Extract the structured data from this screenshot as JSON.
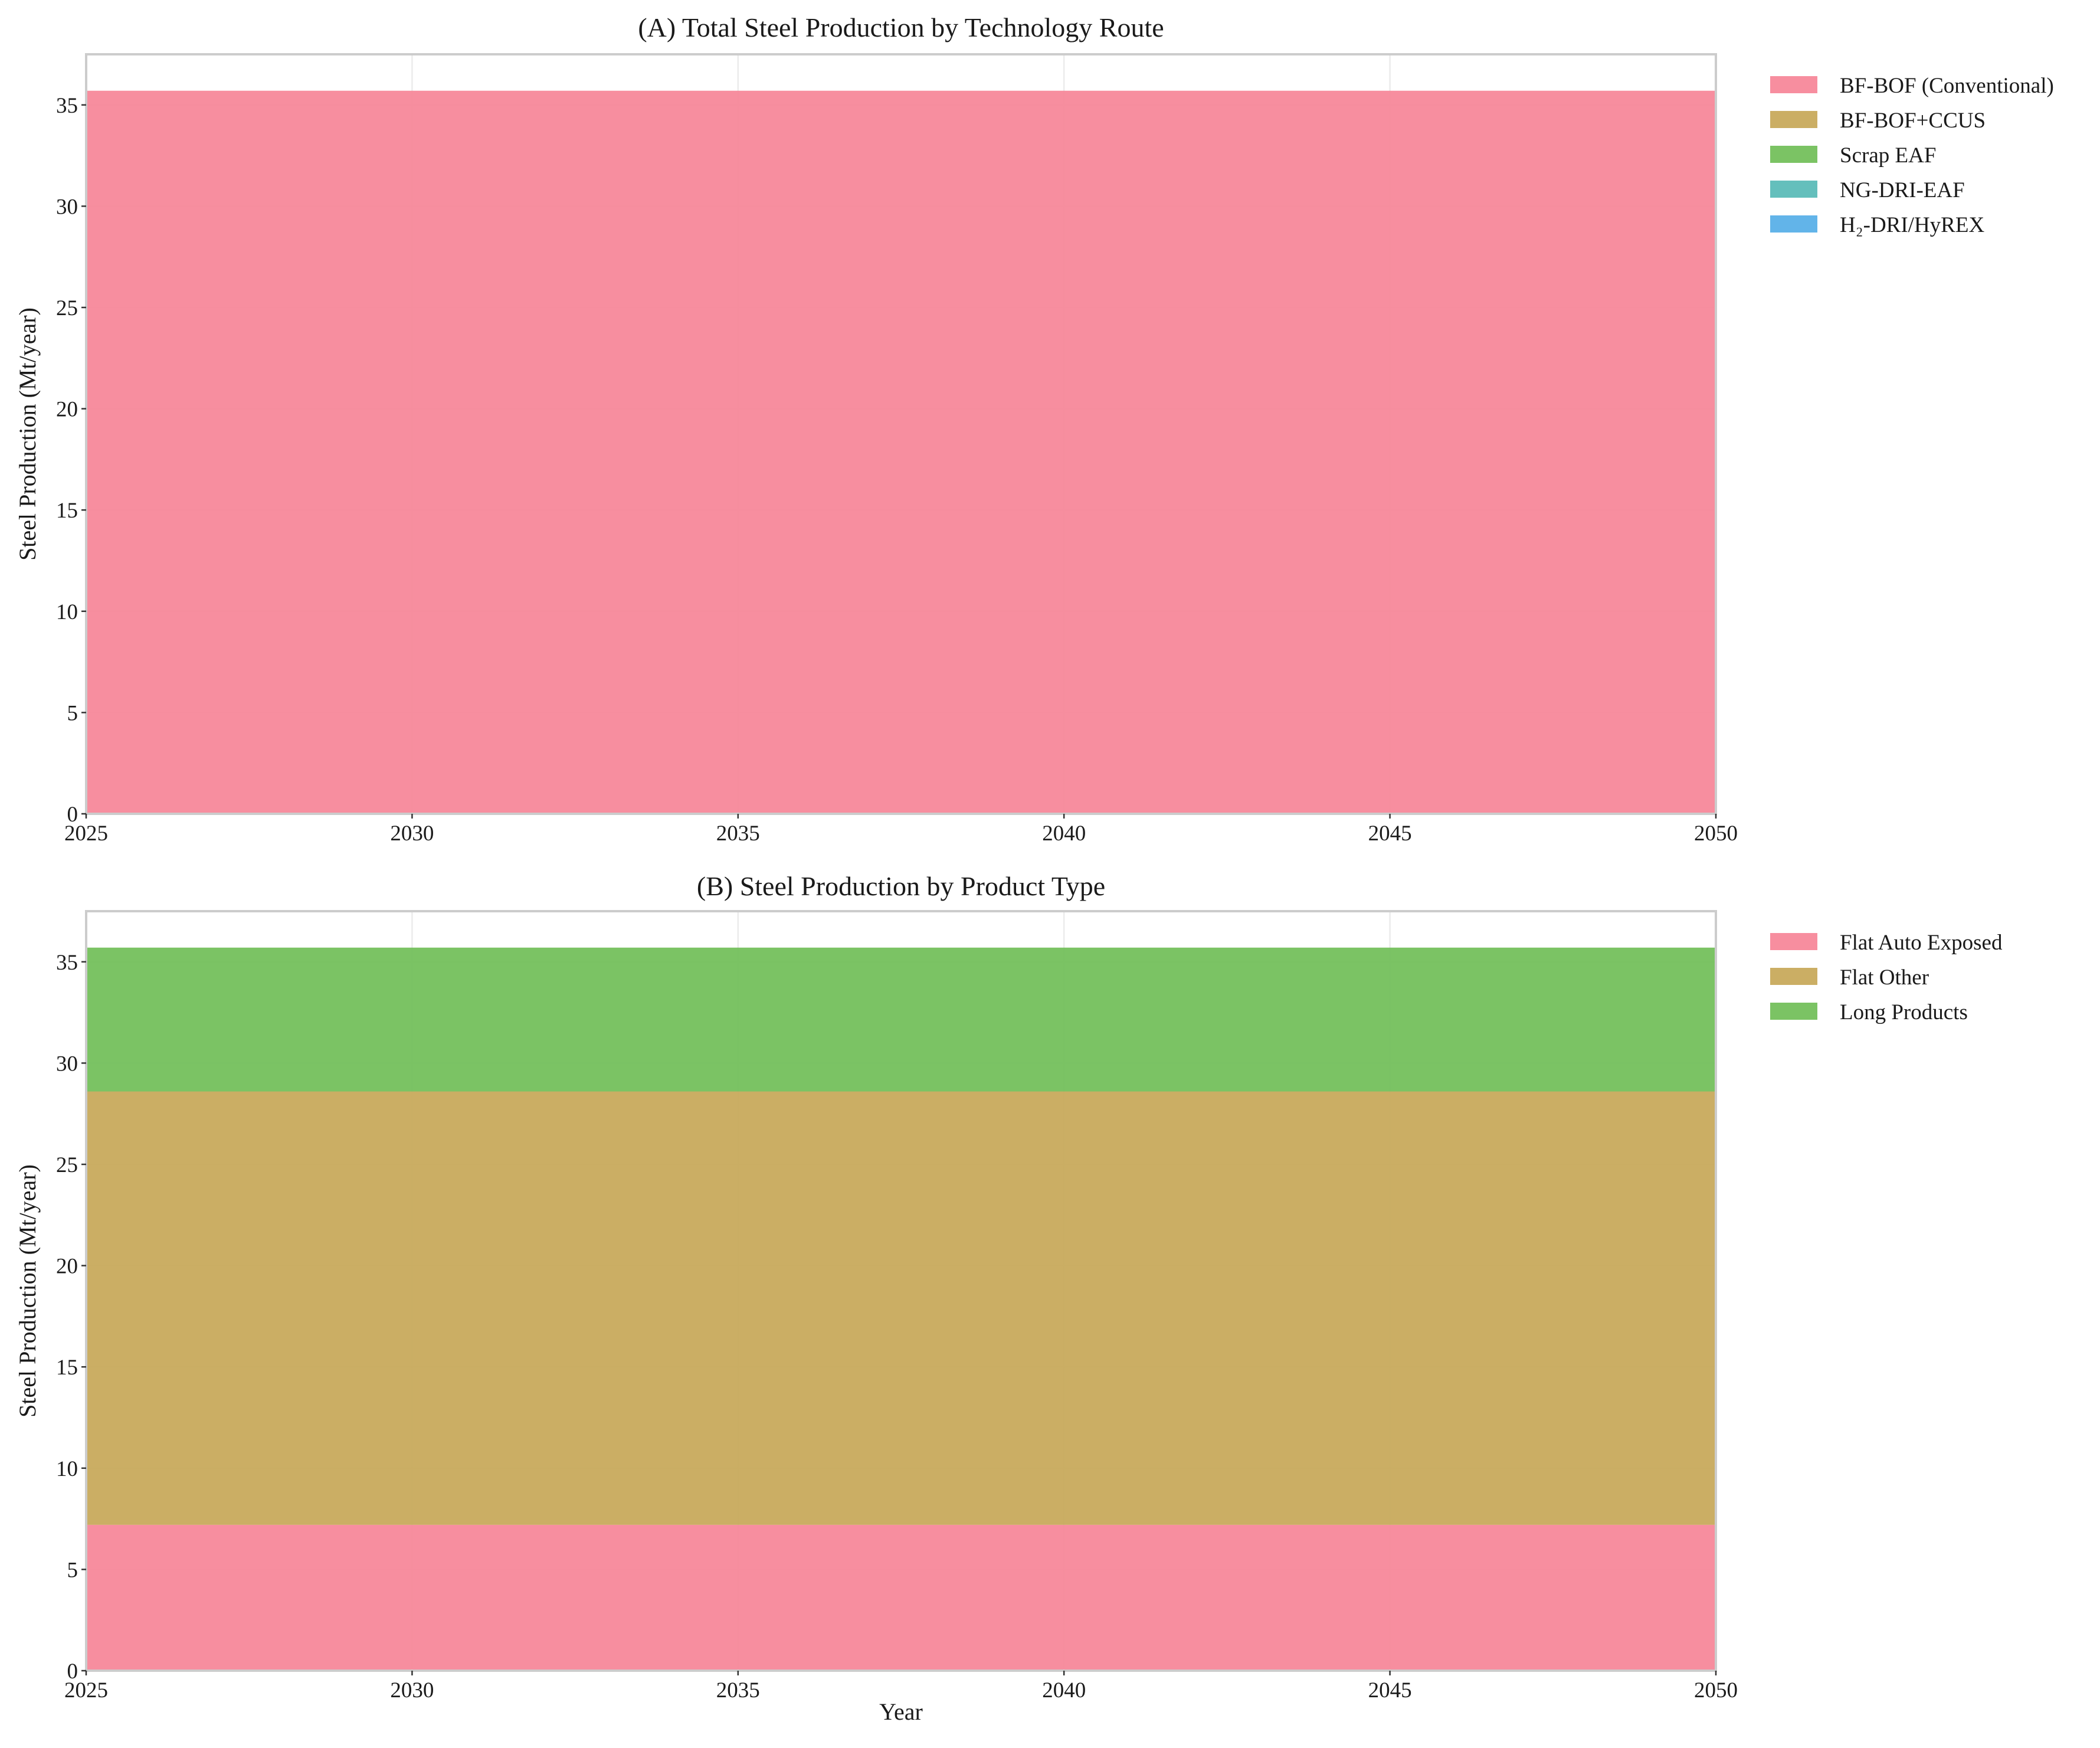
{
  "chart_data": [
    {
      "type": "area",
      "stacked": true,
      "title": "(A) Total Steel Production by Technology Route",
      "xlabel": "",
      "ylabel": "Steel Production (Mt/year)",
      "xlim": [
        2025,
        2050
      ],
      "ylim": [
        0,
        37.5
      ],
      "xticks": [
        2025,
        2030,
        2035,
        2040,
        2045,
        2050
      ],
      "yticks": [
        0,
        5,
        10,
        15,
        20,
        25,
        30,
        35
      ],
      "grid": true,
      "legend_position": "outside-top-right",
      "x": [
        2025,
        2050
      ],
      "series": [
        {
          "name": "BF-BOF (Conventional)",
          "color": "#f7889a",
          "values": [
            35.7,
            35.7
          ]
        },
        {
          "name": "BF-BOF+CCUS",
          "color": "#c8aa5c",
          "values": [
            0,
            0
          ]
        },
        {
          "name": "Scrap EAF",
          "color": "#74c05c",
          "values": [
            0,
            0
          ]
        },
        {
          "name": "NG-DRI-EAF",
          "color": "#5cbcb8",
          "values": [
            0,
            0
          ]
        },
        {
          "name": "H₂-DRI/HyREX",
          "color": "#5ab0e8",
          "values": [
            0,
            0
          ]
        }
      ]
    },
    {
      "type": "area",
      "stacked": true,
      "title": "(B) Steel Production by Product Type",
      "xlabel": "Year",
      "ylabel": "Steel Production (Mt/year)",
      "xlim": [
        2025,
        2050
      ],
      "ylim": [
        0,
        37.5
      ],
      "xticks": [
        2025,
        2030,
        2035,
        2040,
        2045,
        2050
      ],
      "yticks": [
        0,
        5,
        10,
        15,
        20,
        25,
        30,
        35
      ],
      "grid": true,
      "legend_position": "outside-top-right",
      "x": [
        2025,
        2050
      ],
      "series": [
        {
          "name": "Flat Auto Exposed",
          "color": "#f7889a",
          "values": [
            7.2,
            7.2
          ]
        },
        {
          "name": "Flat Other",
          "color": "#c8aa5c",
          "values": [
            21.4,
            21.4
          ]
        },
        {
          "name": "Long Products",
          "color": "#74c05c",
          "values": [
            7.1,
            7.1
          ]
        }
      ]
    }
  ]
}
